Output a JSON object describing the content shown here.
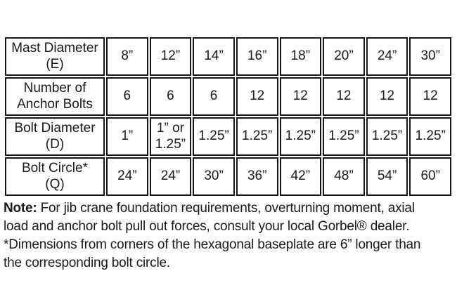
{
  "colors": {
    "shaded_row": "#b4b3d4",
    "border": "#161616",
    "text": "#1a1a1a",
    "value_text": "#23222f",
    "background": "#ffffff"
  },
  "table": {
    "rows": [
      {
        "label": "Mast Diameter",
        "label2": "(E)",
        "shaded": false,
        "values": [
          "8”",
          "12”",
          "14”",
          "16”",
          "18”",
          "20”",
          "24”",
          "30”"
        ]
      },
      {
        "label": "Number of",
        "label2": "Anchor Bolts",
        "shaded": true,
        "values": [
          "6",
          "6",
          "6",
          "12",
          "12",
          "12",
          "12",
          "12"
        ]
      },
      {
        "label": "Bolt Diameter",
        "label2": "(D)",
        "shaded": false,
        "values": [
          "1”",
          "1” or 1.25”",
          "1.25”",
          "1.25”",
          "1.25”",
          "1.25”",
          "1.25”",
          "1.25”"
        ]
      },
      {
        "label": "Bolt Circle*",
        "label2": "(Q)",
        "shaded": true,
        "values": [
          "24”",
          "24”",
          "30”",
          "36”",
          "42”",
          "48”",
          "54”",
          "60”"
        ]
      }
    ]
  },
  "note": {
    "label": "Note:",
    "line1_rest": "For jib crane foundation requirements, overturning moment, axial",
    "line2": "load and anchor bolt pull out forces, consult your local Gorbel® dealer.",
    "line3": "*Dimensions from corners of the hexagonal baseplate are 6” longer than",
    "line4": "the corresponding bolt circle."
  }
}
